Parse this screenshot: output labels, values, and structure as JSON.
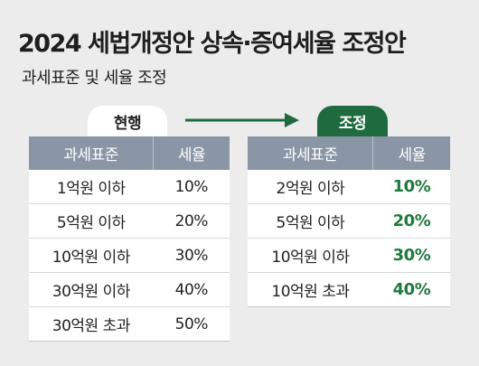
{
  "title": "2024 세법개정안 상속·증여세율 조정안",
  "subtitle": "과세표준 및 세율 조정",
  "current": {
    "label": "현행",
    "headers": [
      "과세표준",
      "세율"
    ],
    "rows": [
      {
        "base": "1억원 이하",
        "rate": "10%"
      },
      {
        "base": "5억원 이하",
        "rate": "20%"
      },
      {
        "base": "10억원 이하",
        "rate": "30%"
      },
      {
        "base": "30억원 이하",
        "rate": "40%"
      },
      {
        "base": "30억원 초과",
        "rate": "50%"
      }
    ]
  },
  "adjusted": {
    "label": "조정",
    "headers": [
      "과세표준",
      "세율"
    ],
    "rows": [
      {
        "base": "2억원 이하",
        "rate": "10%"
      },
      {
        "base": "5억원 이하",
        "rate": "20%"
      },
      {
        "base": "10억원 이하",
        "rate": "30%"
      },
      {
        "base": "10억원 초과",
        "rate": "40%"
      }
    ]
  },
  "colors": {
    "accent": "#1f6b3f",
    "header": "#8a96a6",
    "background": "#ececec"
  }
}
